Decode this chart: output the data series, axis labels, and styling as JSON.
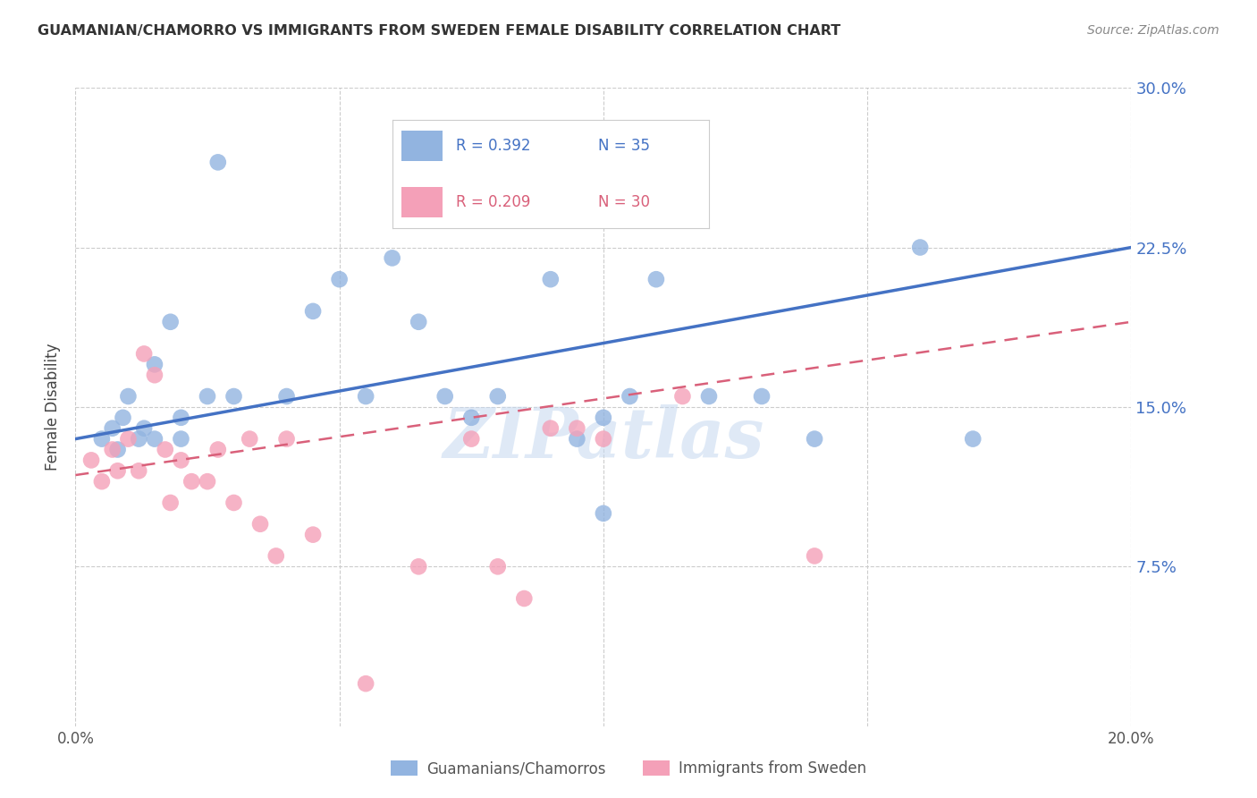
{
  "title": "GUAMANIAN/CHAMORRO VS IMMIGRANTS FROM SWEDEN FEMALE DISABILITY CORRELATION CHART",
  "source": "Source: ZipAtlas.com",
  "ylabel": "Female Disability",
  "xlim": [
    0.0,
    0.2
  ],
  "ylim": [
    0.0,
    0.3
  ],
  "xticks": [
    0.0,
    0.05,
    0.1,
    0.15,
    0.2
  ],
  "xtick_labels": [
    "0.0%",
    "",
    "",
    "",
    "20.0%"
  ],
  "ytick_labels_right": [
    "30.0%",
    "22.5%",
    "15.0%",
    "7.5%"
  ],
  "yticks_right": [
    0.3,
    0.225,
    0.15,
    0.075
  ],
  "series1_label": "Guamanians/Chamorros",
  "series1_R": "R = 0.392",
  "series1_N": "N = 35",
  "series1_color": "#92b4e0",
  "series1_line_color": "#4472c4",
  "series2_label": "Immigrants from Sweden",
  "series2_R": "R = 0.209",
  "series2_N": "N = 30",
  "series2_color": "#f4a0b8",
  "series2_line_color": "#d9607a",
  "watermark": "ZIPatlas",
  "blue_scatter_x": [
    0.005,
    0.007,
    0.008,
    0.009,
    0.01,
    0.012,
    0.013,
    0.015,
    0.015,
    0.018,
    0.02,
    0.02,
    0.025,
    0.027,
    0.03,
    0.04,
    0.045,
    0.05,
    0.055,
    0.06,
    0.065,
    0.07,
    0.075,
    0.08,
    0.09,
    0.095,
    0.1,
    0.1,
    0.105,
    0.11,
    0.12,
    0.13,
    0.14,
    0.16,
    0.17
  ],
  "blue_scatter_y": [
    0.135,
    0.14,
    0.13,
    0.145,
    0.155,
    0.135,
    0.14,
    0.17,
    0.135,
    0.19,
    0.145,
    0.135,
    0.155,
    0.265,
    0.155,
    0.155,
    0.195,
    0.21,
    0.155,
    0.22,
    0.19,
    0.155,
    0.145,
    0.155,
    0.21,
    0.135,
    0.145,
    0.1,
    0.155,
    0.21,
    0.155,
    0.155,
    0.135,
    0.225,
    0.135
  ],
  "pink_scatter_x": [
    0.003,
    0.005,
    0.007,
    0.008,
    0.01,
    0.012,
    0.013,
    0.015,
    0.017,
    0.018,
    0.02,
    0.022,
    0.025,
    0.027,
    0.03,
    0.033,
    0.035,
    0.038,
    0.04,
    0.045,
    0.055,
    0.065,
    0.075,
    0.08,
    0.085,
    0.09,
    0.095,
    0.1,
    0.115,
    0.14
  ],
  "pink_scatter_y": [
    0.125,
    0.115,
    0.13,
    0.12,
    0.135,
    0.12,
    0.175,
    0.165,
    0.13,
    0.105,
    0.125,
    0.115,
    0.115,
    0.13,
    0.105,
    0.135,
    0.095,
    0.08,
    0.135,
    0.09,
    0.02,
    0.075,
    0.135,
    0.075,
    0.06,
    0.14,
    0.14,
    0.135,
    0.155,
    0.08
  ],
  "blue_line_x": [
    0.0,
    0.2
  ],
  "blue_line_y": [
    0.135,
    0.225
  ],
  "pink_line_x": [
    0.0,
    0.2
  ],
  "pink_line_y": [
    0.118,
    0.19
  ]
}
